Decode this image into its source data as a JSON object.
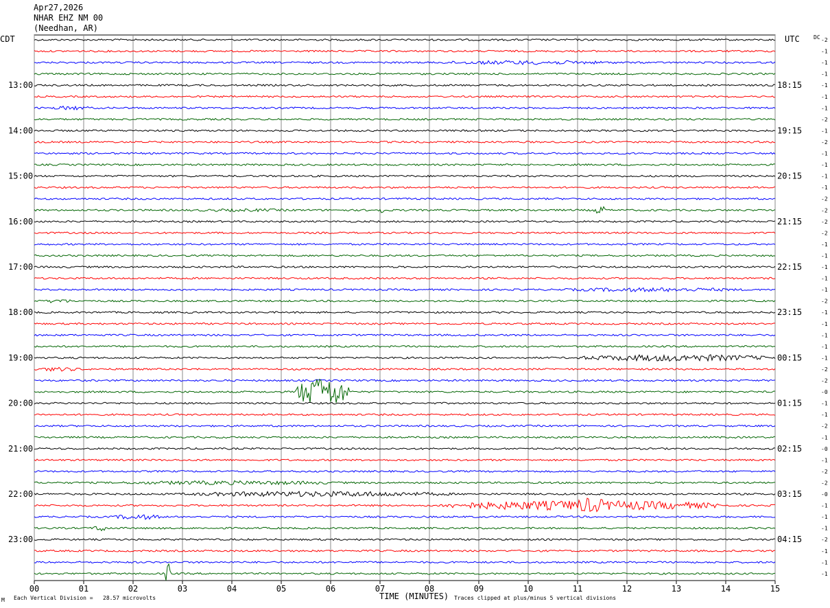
{
  "header": {
    "date": "Apr27,2026",
    "station": "NHAR EHZ NM 00",
    "location": "(Needhan, AR)"
  },
  "axes": {
    "left_timezone": "CDT",
    "right_timezone": "UTC",
    "dc_label": "DC",
    "xlabel": "TIME (MINUTES)",
    "scale_note": "Each Vertical Division =   28.57 microvolts",
    "clip_note": "Traces clipped at plus/minus 5 vertical divisions",
    "corner_glyph": "M"
  },
  "chart_data": {
    "type": "line",
    "title": "NHAR EHZ NM 00",
    "xlabel": "TIME (MINUTES)",
    "x_range": [
      0,
      15
    ],
    "x_ticks": [
      "00",
      "01",
      "02",
      "03",
      "04",
      "05",
      "06",
      "07",
      "08",
      "09",
      "10",
      "11",
      "12",
      "13",
      "14",
      "15"
    ],
    "trace_count": 48,
    "trace_interval_minutes": 15,
    "trace_colors": [
      "#000000",
      "#ff0000",
      "#0000ff",
      "#006400"
    ],
    "left_hour_labels": [
      {
        "trace": 4,
        "label": "13:00"
      },
      {
        "trace": 8,
        "label": "14:00"
      },
      {
        "trace": 12,
        "label": "15:00"
      },
      {
        "trace": 16,
        "label": "16:00"
      },
      {
        "trace": 20,
        "label": "17:00"
      },
      {
        "trace": 24,
        "label": "18:00"
      },
      {
        "trace": 28,
        "label": "19:00"
      },
      {
        "trace": 32,
        "label": "20:00"
      },
      {
        "trace": 36,
        "label": "21:00"
      },
      {
        "trace": 40,
        "label": "22:00"
      },
      {
        "trace": 44,
        "label": "23:00"
      }
    ],
    "right_hour_labels": [
      {
        "trace": 4,
        "label": "18:15"
      },
      {
        "trace": 8,
        "label": "19:15"
      },
      {
        "trace": 12,
        "label": "20:15"
      },
      {
        "trace": 16,
        "label": "21:15"
      },
      {
        "trace": 20,
        "label": "22:15"
      },
      {
        "trace": 24,
        "label": "23:15"
      },
      {
        "trace": 28,
        "label": "00:15"
      },
      {
        "trace": 32,
        "label": "01:15"
      },
      {
        "trace": 36,
        "label": "02:15"
      },
      {
        "trace": 40,
        "label": "03:15"
      },
      {
        "trace": 44,
        "label": "04:15"
      }
    ],
    "dc_offsets": [
      "-2",
      "-1",
      "-1",
      "-1",
      "-1",
      "-1",
      "-1",
      "-2",
      "-1",
      "-2",
      "-1",
      "-1",
      "-1",
      "-1",
      "-2",
      "-2",
      "-2",
      "-2",
      "-1",
      "-1",
      "-1",
      "-1",
      "-1",
      "-2",
      "-1",
      "-1",
      "-1",
      "-1",
      "-1",
      "-2",
      "-2",
      "-0",
      "-1",
      "-1",
      "-2",
      "-1",
      "-0",
      "-1",
      "-2",
      "-2",
      "-0",
      "-1",
      "-1",
      "-1",
      "-2",
      "-1",
      "-1",
      "-1"
    ],
    "base_amplitude": 1.3,
    "bursts": [
      {
        "trace": 2,
        "start": 8.0,
        "end": 12.0,
        "amp": 3
      },
      {
        "trace": 6,
        "start": 0.3,
        "end": 1.2,
        "amp": 3
      },
      {
        "trace": 15,
        "start": 6.95,
        "end": 7.1,
        "amp": 5
      },
      {
        "trace": 15,
        "start": 11.3,
        "end": 11.6,
        "amp": 6
      },
      {
        "trace": 15,
        "start": 3.0,
        "end": 5.5,
        "amp": 2.2
      },
      {
        "trace": 22,
        "start": 10.5,
        "end": 14.5,
        "amp": 3
      },
      {
        "trace": 23,
        "start": 0.2,
        "end": 0.8,
        "amp": 3
      },
      {
        "trace": 28,
        "start": 11.0,
        "end": 15.0,
        "amp": 5
      },
      {
        "trace": 29,
        "start": 0.0,
        "end": 1.0,
        "amp": 3
      },
      {
        "trace": 31,
        "start": 5.3,
        "end": 6.4,
        "amp": 22
      },
      {
        "trace": 39,
        "start": 1.5,
        "end": 6.5,
        "amp": 3
      },
      {
        "trace": 40,
        "start": 3.0,
        "end": 8.5,
        "amp": 4
      },
      {
        "trace": 41,
        "start": 8.2,
        "end": 14.0,
        "amp": 7
      },
      {
        "trace": 41,
        "start": 10.8,
        "end": 11.7,
        "amp": 11
      },
      {
        "trace": 42,
        "start": 1.6,
        "end": 2.6,
        "amp": 4
      },
      {
        "trace": 43,
        "start": 1.2,
        "end": 1.5,
        "amp": 5
      },
      {
        "trace": 47,
        "start": 2.65,
        "end": 2.75,
        "amp": 18
      }
    ]
  }
}
